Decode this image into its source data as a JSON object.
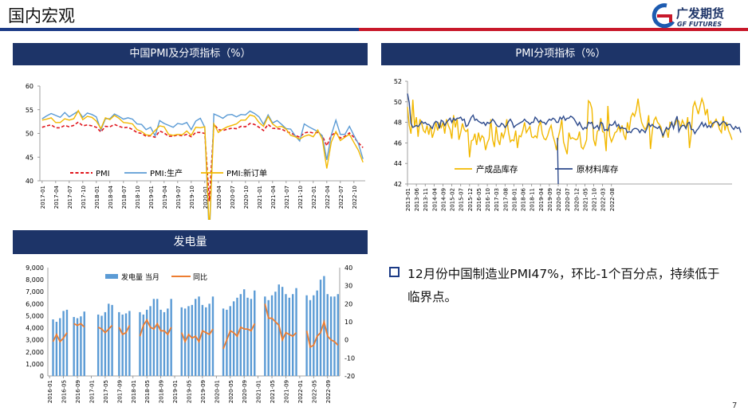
{
  "header": {
    "title": "国内宏观"
  },
  "logo": {
    "cn": "广发期货",
    "en": "GF FUTURES"
  },
  "summary": {
    "text_line1": "12月份中国制造业PMI47%，环比-1个百分点，持续低于",
    "text_line2": "临界点。"
  },
  "page_number": "7",
  "colors": {
    "navy": "#1d3468",
    "red": "#c8182a",
    "pmi": "#e0151c",
    "production": "#5b9bd5",
    "orders": "#f2b800",
    "finished_inv": "#f2b800",
    "raw_inv": "#2d4a8c",
    "bar": "#5b9bd5",
    "yoy": "#ed7d31"
  },
  "chart_data": [
    {
      "type": "line",
      "title": "中国PMI及分项指标（%）",
      "x": [
        "2017-01",
        "2017-02",
        "2017-03",
        "2017-04",
        "2017-05",
        "2017-06",
        "2017-07",
        "2017-08",
        "2017-09",
        "2017-10",
        "2017-11",
        "2017-12",
        "2018-01",
        "2018-02",
        "2018-03",
        "2018-04",
        "2018-05",
        "2018-06",
        "2018-07",
        "2018-08",
        "2018-09",
        "2018-10",
        "2018-11",
        "2018-12",
        "2019-01",
        "2019-02",
        "2019-03",
        "2019-04",
        "2019-05",
        "2019-06",
        "2019-07",
        "2019-08",
        "2019-09",
        "2019-10",
        "2019-11",
        "2019-12",
        "2020-01",
        "2020-02",
        "2020-03",
        "2020-04",
        "2020-05",
        "2020-06",
        "2020-07",
        "2020-08",
        "2020-09",
        "2020-10",
        "2020-11",
        "2020-12",
        "2021-01",
        "2021-02",
        "2021-03",
        "2021-04",
        "2021-05",
        "2021-06",
        "2021-07",
        "2021-08",
        "2021-09",
        "2021-10",
        "2021-11",
        "2021-12",
        "2022-01",
        "2022-02",
        "2022-03",
        "2022-04",
        "2022-05",
        "2022-06",
        "2022-07",
        "2022-08",
        "2022-09",
        "2022-10",
        "2022-11",
        "2022-12"
      ],
      "xticks": [
        "2017-01",
        "2017-04",
        "2017-07",
        "2017-10",
        "2018-01",
        "2018-04",
        "2018-07",
        "2018-10",
        "2019-01",
        "2019-04",
        "2019-07",
        "2019-10",
        "2020-01",
        "2020-04",
        "2020-07",
        "2020-10",
        "2021-01",
        "2021-04",
        "2021-07",
        "2021-10",
        "2022-01",
        "2022-04",
        "2022-07",
        "2022-10"
      ],
      "ylim": [
        40,
        60
      ],
      "yticks": [
        40,
        45,
        50,
        55,
        60
      ],
      "series": [
        {
          "name": "PMI",
          "values": [
            51.3,
            51.6,
            51.8,
            51.2,
            51.2,
            51.7,
            51.4,
            51.7,
            52.4,
            51.6,
            51.8,
            51.6,
            51.3,
            50.3,
            51.5,
            51.4,
            51.9,
            51.5,
            51.2,
            51.3,
            50.8,
            50.2,
            50.0,
            49.4,
            49.5,
            49.2,
            50.5,
            50.1,
            49.4,
            49.4,
            49.7,
            49.5,
            49.8,
            49.3,
            50.2,
            50.2,
            50.0,
            35.7,
            52.0,
            50.8,
            50.6,
            50.9,
            51.1,
            51.0,
            51.5,
            51.4,
            52.1,
            51.9,
            51.3,
            50.6,
            51.9,
            51.1,
            51.0,
            50.9,
            50.4,
            50.1,
            49.6,
            49.2,
            50.1,
            50.3,
            50.1,
            50.2,
            49.5,
            47.4,
            49.6,
            50.2,
            49.0,
            49.4,
            50.1,
            49.2,
            48.0,
            47.0
          ]
        },
        {
          "name": "PMI:生产",
          "values": [
            53.1,
            53.7,
            54.2,
            53.8,
            53.4,
            54.4,
            53.5,
            54.1,
            54.7,
            53.4,
            54.3,
            54.0,
            53.5,
            50.7,
            53.1,
            53.1,
            54.1,
            53.6,
            53.0,
            53.3,
            53.0,
            52.0,
            51.9,
            50.8,
            51.3,
            49.5,
            52.7,
            52.1,
            51.7,
            51.3,
            52.1,
            51.9,
            52.3,
            50.8,
            52.6,
            53.2,
            51.3,
            27.8,
            54.1,
            53.7,
            53.2,
            53.9,
            54.0,
            53.5,
            54.0,
            53.9,
            54.7,
            54.2,
            53.5,
            51.9,
            53.9,
            52.2,
            52.7,
            51.9,
            51.0,
            50.9,
            49.5,
            48.4,
            52.0,
            51.4,
            50.9,
            50.4,
            49.5,
            44.4,
            49.7,
            52.8,
            49.8,
            49.8,
            51.5,
            49.6,
            47.8,
            44.6
          ]
        },
        {
          "name": "PMI:新订单",
          "values": [
            52.8,
            53.0,
            53.3,
            52.3,
            52.3,
            53.1,
            52.8,
            53.1,
            54.8,
            52.9,
            53.6,
            53.4,
            52.6,
            51.0,
            53.3,
            52.9,
            53.8,
            53.2,
            52.3,
            52.2,
            52.0,
            50.8,
            50.4,
            49.7,
            49.6,
            50.6,
            51.6,
            51.4,
            49.8,
            49.6,
            49.8,
            49.7,
            50.5,
            49.6,
            51.3,
            51.2,
            51.4,
            29.3,
            52.0,
            50.2,
            50.9,
            51.4,
            51.7,
            52.0,
            52.8,
            52.8,
            53.9,
            53.6,
            52.3,
            51.5,
            53.6,
            52.0,
            51.3,
            51.5,
            50.9,
            49.6,
            49.3,
            48.8,
            49.4,
            49.7,
            49.3,
            50.7,
            48.8,
            42.6,
            48.2,
            50.4,
            48.5,
            49.2,
            49.8,
            48.1,
            46.4,
            43.9
          ]
        }
      ]
    },
    {
      "type": "line",
      "title": "PMI分项指标（%）",
      "xticks": [
        "2013-01",
        "2013-06",
        "2013-11",
        "2014-04",
        "2014-09",
        "2015-02",
        "2015-07",
        "2015-12",
        "2016-05",
        "2016-10",
        "2017-03",
        "2017-08",
        "2018-01",
        "2018-06",
        "2018-11",
        "2019-04",
        "2019-09",
        "2020-02",
        "2020-07",
        "2020-12",
        "2021-05",
        "2021-10",
        "2022-03",
        "2022-08"
      ],
      "ylim": [
        42,
        52
      ],
      "yticks": [
        42,
        44,
        46,
        48,
        50,
        52
      ],
      "series": [
        {
          "name": "产成品库存",
          "values": [
            49.5,
            47.7,
            46.9,
            50.2,
            47.6,
            48.5,
            46.6,
            48.3,
            47.9,
            47.2,
            47.0,
            47.7,
            46.8,
            47.7,
            46.5,
            47.1,
            48.0,
            47.2,
            47.9,
            47.5,
            48.0,
            46.9,
            48.3,
            47.7,
            47.3,
            46.4,
            48.7,
            47.5,
            48.3,
            46.3,
            47.0,
            47.9,
            47.3,
            47.1,
            47.3,
            44.6,
            46.2,
            46.3,
            46.9,
            45.8,
            47.0,
            46.2,
            46.7,
            46.5,
            45.3,
            46.0,
            46.4,
            48.3,
            46.3,
            45.6,
            47.6,
            46.3,
            45.8,
            47.0,
            46.5,
            47.1,
            48.3,
            47.0,
            46.1,
            46.3,
            46.2,
            47.2,
            45.5,
            46.7,
            46.6,
            47.2,
            48.0,
            47.0,
            47.3,
            47.6,
            46.6,
            46.5,
            46.7,
            46.5,
            47.6,
            48.1,
            46.9,
            46.4,
            46.3,
            46.7,
            47.3,
            47.7,
            46.7,
            46.1,
            45.3,
            46.5,
            47.3,
            48.3,
            46.1,
            45.5,
            44.9,
            47.0,
            46.4,
            46.5,
            46.4,
            46.3,
            46.4,
            47.1,
            45.6,
            45.4,
            45.8,
            46.3,
            50.1,
            49.9,
            49.3,
            46.3,
            45.7,
            47.1,
            47.3,
            48.4,
            47.1,
            47.0,
            45.2,
            49.6,
            46.7,
            46.1,
            46.5,
            47.0,
            47.1,
            47.6,
            47.1,
            47.7,
            46.8,
            46.3,
            48.0,
            47.2,
            48.5,
            48.9,
            48.6,
            49.2,
            50.3,
            49.0,
            48.0,
            47.6,
            47.3,
            47.6,
            48.7,
            45.4,
            47.1,
            48.2,
            48.5,
            48.0,
            47.8,
            47.5,
            46.5,
            47.1,
            47.3,
            46.5,
            48.0,
            47.9,
            47.6,
            47.8,
            48.3,
            48.1,
            47.5,
            48.2,
            47.8,
            47.4,
            48.5,
            45.5,
            46.9,
            49.5,
            50.0,
            49.4,
            48.8,
            49.6,
            50.3,
            49.8,
            48.7,
            49.3,
            47.8,
            48.1,
            47.6,
            48.0,
            48.3,
            47.9,
            47.3,
            47.0,
            48.6,
            47.2,
            48.0,
            47.2,
            46.8,
            46.3
          ]
        },
        {
          "name": "原材料库存",
          "values": [
            50.8,
            49.9,
            47.9,
            47.5,
            47.6,
            47.7,
            47.6,
            47.8,
            48.1,
            47.9,
            48.0,
            47.8,
            47.8,
            47.6,
            47.4,
            47.9,
            48.1,
            48.0,
            47.4,
            48.2,
            48.1,
            47.7,
            48.0,
            48.2,
            48.4,
            48.0,
            48.4,
            48.2,
            48.4,
            48.4,
            48.5,
            48.2,
            48.3,
            47.6,
            47.7,
            48.1,
            48.5,
            48.7,
            48.2,
            48.3,
            48.1,
            48.0,
            47.9,
            48.0,
            47.7,
            48.0,
            47.9,
            48.0,
            48.3,
            48.1,
            47.8,
            47.6,
            47.6,
            47.9,
            47.8,
            47.5,
            47.7,
            48.1,
            48.3,
            48.0,
            47.5,
            47.7,
            47.8,
            47.9,
            48.0,
            48.1,
            48.3,
            48.1,
            48.0,
            47.8,
            48.0,
            48.0,
            48.5,
            48.3,
            48.0,
            48.2,
            48.0,
            48.0,
            47.8,
            48.1,
            48.3,
            48.2,
            48.4,
            48.3,
            48.0,
            48.0,
            48.5,
            48.3,
            48.6,
            48.2,
            48.4,
            48.4,
            48.6,
            48.5,
            48.3,
            48.0,
            47.7,
            48.0,
            47.6,
            47.3,
            47.5,
            47.4,
            48.0,
            47.9,
            48.0,
            47.4,
            47.5,
            47.7,
            47.3,
            48.0,
            47.9,
            47.2,
            47.3,
            47.2,
            47.8,
            47.7,
            47.8,
            48.1,
            47.6,
            47.8,
            47.4,
            47.5,
            47.4,
            47.4,
            47.0,
            47.1,
            47.0,
            47.3,
            47.4,
            47.4,
            47.3,
            47.0,
            47.3,
            47.2,
            47.0,
            47.4,
            47.9,
            47.6,
            47.8,
            47.6,
            47.5,
            47.4,
            47.6,
            47.2,
            46.7,
            47.1,
            47.5,
            47.3,
            47.5,
            48.0,
            47.4,
            48.1,
            48.6,
            47.1,
            47.5,
            47.7,
            47.7,
            47.4,
            47.9,
            48.0,
            47.3,
            47.3,
            46.9,
            47.2,
            47.4,
            47.7,
            48.0,
            47.6,
            47.9,
            47.5,
            47.7,
            47.5,
            47.9,
            48.0,
            48.1,
            48.0,
            47.7,
            47.9,
            48.1,
            48.0,
            47.7,
            47.8,
            47.8,
            47.5,
            47.3,
            47.6,
            47.4,
            47.5,
            47.0
          ]
        }
      ]
    },
    {
      "type": "bar",
      "title": "发电量",
      "x": [
        "2016-01",
        "2016-02",
        "2016-03",
        "2016-04",
        "2016-05",
        "2016-06",
        "2016-07",
        "2016-08",
        "2016-09",
        "2016-10",
        "2016-11",
        "2016-12",
        "2017-01",
        "2017-02",
        "2017-03",
        "2017-04",
        "2017-05",
        "2017-06",
        "2017-07",
        "2017-08",
        "2017-09",
        "2017-10",
        "2017-11",
        "2017-12",
        "2018-01",
        "2018-02",
        "2018-03",
        "2018-04",
        "2018-05",
        "2018-06",
        "2018-07",
        "2018-08",
        "2018-09",
        "2018-10",
        "2018-11",
        "2018-12",
        "2019-01",
        "2019-02",
        "2019-03",
        "2019-04",
        "2019-05",
        "2019-06",
        "2019-07",
        "2019-08",
        "2019-09",
        "2019-10",
        "2019-11",
        "2019-12",
        "2020-01",
        "2020-02",
        "2020-03",
        "2020-04",
        "2020-05",
        "2020-06",
        "2020-07",
        "2020-08",
        "2020-09",
        "2020-10",
        "2020-11",
        "2020-12",
        "2021-01",
        "2021-02",
        "2021-03",
        "2021-04",
        "2021-05",
        "2021-06",
        "2021-07",
        "2021-08",
        "2021-09",
        "2021-10",
        "2021-11",
        "2021-12",
        "2022-01",
        "2022-02",
        "2022-03",
        "2022-04",
        "2022-05",
        "2022-06",
        "2022-07",
        "2022-08",
        "2022-09",
        "2022-10",
        "2022-11",
        "2022-12"
      ],
      "xticks": [
        "2016-01",
        "2016-05",
        "2016-09",
        "2017-01",
        "2017-05",
        "2017-09",
        "2018-01",
        "2018-05",
        "2018-09",
        "2019-01",
        "2019-05",
        "2019-09",
        "2020-01",
        "2020-05",
        "2020-09",
        "2021-01",
        "2021-05",
        "2021-09",
        "2022-01",
        "2022-05",
        "2022-09"
      ],
      "ylim": [
        0,
        9000
      ],
      "yticks": [
        0,
        1000,
        2000,
        3000,
        4000,
        5000,
        6000,
        7000,
        8000,
        9000
      ],
      "y2lim": [
        -20,
        40
      ],
      "y2ticks": [
        -20,
        -10,
        0,
        10,
        20,
        30,
        40
      ],
      "series": [
        {
          "name": "发电量 当月",
          "axis": "left",
          "values": [
            null,
            4700,
            4500,
            4800,
            5400,
            5500,
            null,
            4900,
            4800,
            4950,
            5350,
            null,
            null,
            null,
            5100,
            5000,
            5300,
            6000,
            5900,
            null,
            5300,
            5100,
            5200,
            5400,
            null,
            null,
            5300,
            5100,
            5500,
            5800,
            6400,
            6400,
            5500,
            5300,
            5600,
            6400,
            null,
            null,
            5700,
            5600,
            5800,
            5900,
            6400,
            6600,
            5900,
            5700,
            6000,
            6600,
            null,
            null,
            5600,
            5500,
            5800,
            6200,
            6500,
            6800,
            7200,
            6500,
            6400,
            7100,
            null,
            null,
            6600,
            6300,
            6700,
            7000,
            7600,
            7400,
            6800,
            6500,
            6800,
            7300,
            null,
            null,
            6700,
            6300,
            6700,
            7100,
            8000,
            8300,
            6800,
            6600,
            6600,
            6800
          ]
        },
        {
          "name": "同比",
          "axis": "right",
          "values": [
            null,
            -1,
            3,
            -1,
            1,
            4,
            null,
            9,
            8,
            9,
            7,
            null,
            null,
            null,
            7,
            6,
            4,
            6,
            8,
            null,
            7,
            3,
            4,
            8,
            null,
            null,
            2,
            8,
            11,
            7,
            6,
            9,
            5,
            5,
            3,
            7,
            null,
            null,
            4,
            -1,
            3,
            1,
            2,
            -1,
            5,
            4,
            3,
            6,
            null,
            null,
            -5,
            0,
            5,
            4,
            2,
            7,
            6,
            6,
            5,
            9,
            null,
            null,
            20,
            12,
            12,
            10,
            8,
            0,
            4,
            3,
            2,
            4,
            null,
            null,
            5,
            -4,
            -3,
            2,
            4,
            10,
            2,
            0,
            -1,
            -3
          ]
        }
      ]
    }
  ]
}
